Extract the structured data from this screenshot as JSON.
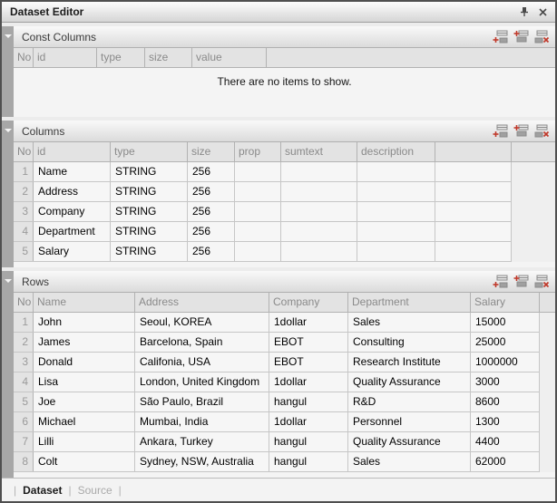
{
  "window": {
    "title": "Dataset Editor"
  },
  "icons": [
    "pin-icon",
    "close-icon",
    "collapse-arrow-icon",
    "add-row-icon",
    "insert-row-icon",
    "delete-row-icon"
  ],
  "colors": {
    "accent_red": "#c0392b",
    "header_text": "#8a8a8a",
    "strip_gray": "#a7a7a7",
    "row_bg": "#f6f6f6"
  },
  "tabs": {
    "dataset": "Dataset",
    "source": "Source",
    "divider": "|"
  },
  "sections": [
    {
      "title": "Const Columns",
      "empty_message": "There are no items to show.",
      "table": {
        "headers": [
          "No",
          "id",
          "type",
          "size",
          "value"
        ],
        "widths": [
          22,
          70,
          53,
          52,
          82
        ],
        "rows": []
      }
    },
    {
      "title": "Columns",
      "table": {
        "headers": [
          "No",
          "id",
          "type",
          "size",
          "prop",
          "sumtext",
          "description",
          ""
        ],
        "widths": [
          22,
          85,
          85,
          52,
          51,
          84,
          86,
          84
        ],
        "rows": [
          [
            "1",
            "Name",
            "STRING",
            "256",
            "",
            "",
            "",
            ""
          ],
          [
            "2",
            "Address",
            "STRING",
            "256",
            "",
            "",
            "",
            ""
          ],
          [
            "3",
            "Company",
            "STRING",
            "256",
            "",
            "",
            "",
            ""
          ],
          [
            "4",
            "Department",
            "STRING",
            "256",
            "",
            "",
            "",
            ""
          ],
          [
            "5",
            "Salary",
            "STRING",
            "256",
            "",
            "",
            "",
            ""
          ]
        ]
      }
    },
    {
      "title": "Rows",
      "table": {
        "headers": [
          "No",
          "Name",
          "Address",
          "Company",
          "Department",
          "Salary"
        ],
        "widths": [
          22,
          112,
          148,
          87,
          135,
          76
        ],
        "rows": [
          [
            "1",
            "John",
            "Seoul, KOREA",
            "1dollar",
            "Sales",
            "15000"
          ],
          [
            "2",
            "James",
            "Barcelona, Spain",
            "EBOT",
            "Consulting",
            "25000"
          ],
          [
            "3",
            "Donald",
            "Califonia, USA",
            "EBOT",
            "Research Institute",
            "1000000"
          ],
          [
            "4",
            "Lisa",
            "London, United Kingdom",
            "1dollar",
            "Quality Assurance",
            "3000"
          ],
          [
            "5",
            "Joe",
            "São Paulo, Brazil",
            "hangul",
            "R&D",
            "8600"
          ],
          [
            "6",
            "Michael",
            "Mumbai, India",
            "1dollar",
            "Personnel",
            "1300"
          ],
          [
            "7",
            "Lilli",
            "Ankara, Turkey",
            "hangul",
            "Quality Assurance",
            "4400"
          ],
          [
            "8",
            "Colt",
            "Sydney, NSW, Australia",
            "hangul",
            "Sales",
            "62000"
          ]
        ]
      }
    }
  ]
}
